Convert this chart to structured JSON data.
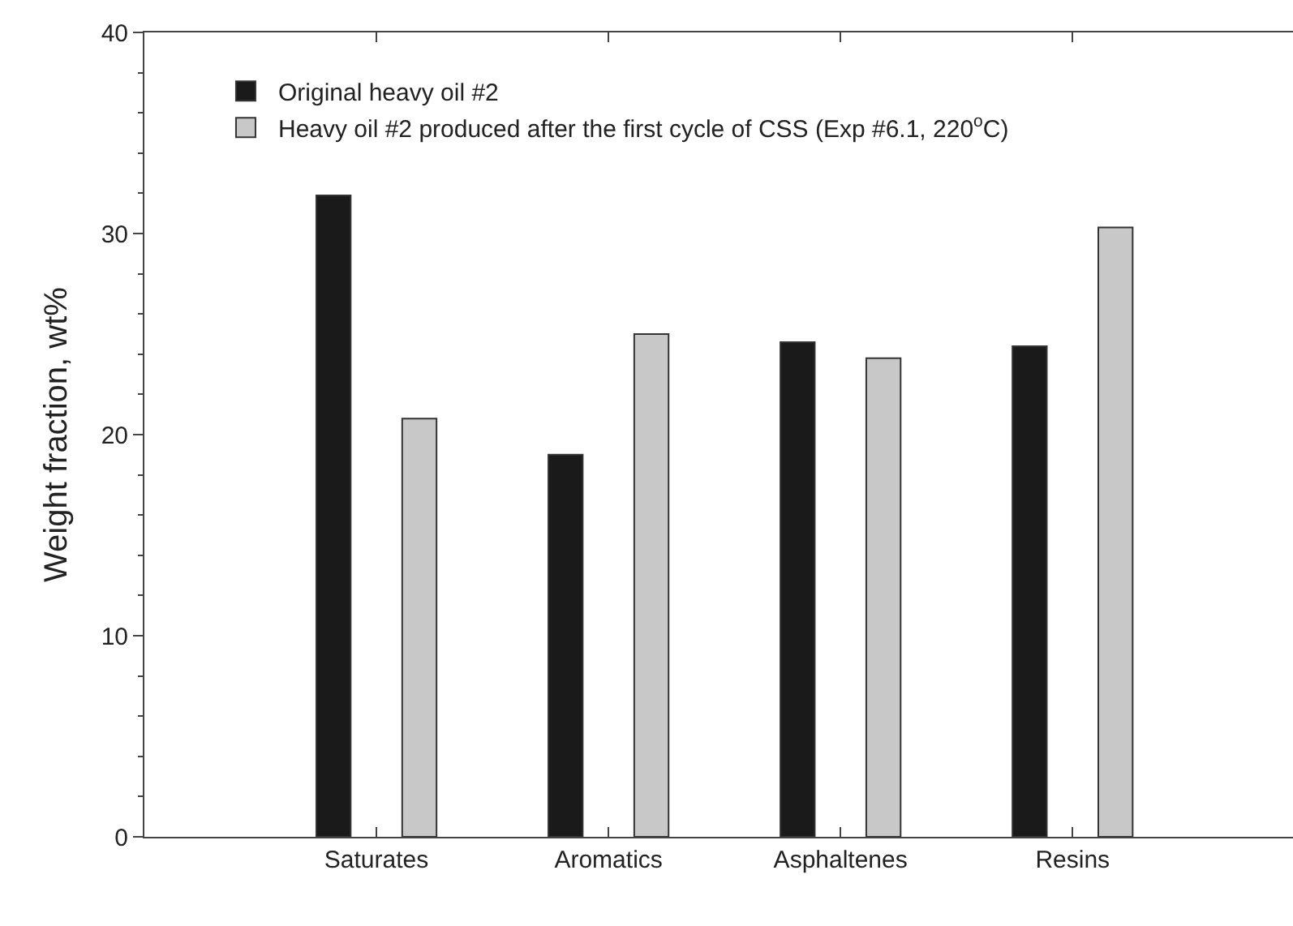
{
  "chart_data": {
    "type": "bar",
    "ylabel": "Weight fraction, wt%",
    "categories": [
      "Saturates",
      "Aromatics",
      "Asphaltenes",
      "Resins"
    ],
    "series": [
      {
        "name": "Original heavy oil #2",
        "color": "#1a1a1a",
        "values": [
          31.9,
          19.0,
          24.6,
          24.4
        ]
      },
      {
        "name": "Heavy oil #2 produced after the first cycle of CSS (Exp #6.1, 220$^{o}$C)",
        "color": "#c8c8c8",
        "values": [
          20.8,
          25.0,
          23.8,
          30.3
        ]
      }
    ],
    "ylim": [
      0,
      40
    ],
    "yticks": [
      0,
      10,
      20,
      30,
      40
    ],
    "legend": "top left"
  }
}
